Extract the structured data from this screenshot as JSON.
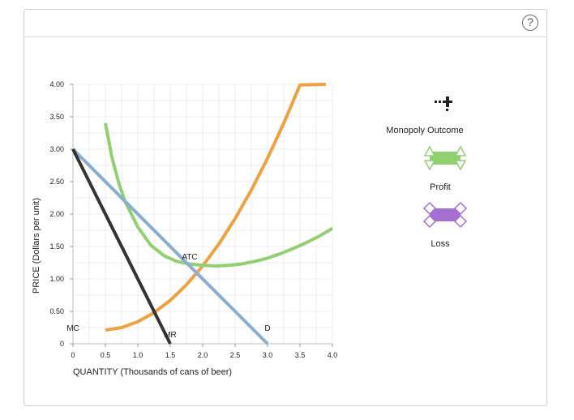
{
  "help_button": {
    "label": "?"
  },
  "chart_data": {
    "type": "line",
    "title": "",
    "xlabel": "QUANTITY (Thousands of cans of beer)",
    "ylabel": "PRICE (Dollars per unit)",
    "xlim": [
      0,
      4.0
    ],
    "ylim": [
      0,
      4.0
    ],
    "x_ticks": [
      "0",
      "0.5",
      "1.0",
      "1.5",
      "2.0",
      "2.5",
      "3.0",
      "3.5",
      "4.0"
    ],
    "y_ticks": [
      "0",
      "0.50",
      "1.00",
      "1.50",
      "2.00",
      "2.50",
      "3.00",
      "3.50",
      "4.00"
    ],
    "grid": true,
    "series": [
      {
        "name": "MC",
        "color": "#f0a040",
        "label_at": [
          0.0,
          0.2
        ],
        "points": [
          [
            0.5,
            0.21
          ],
          [
            0.75,
            0.25
          ],
          [
            1.0,
            0.34
          ],
          [
            1.25,
            0.48
          ],
          [
            1.5,
            0.67
          ],
          [
            1.75,
            0.91
          ],
          [
            2.0,
            1.2
          ],
          [
            2.25,
            1.54
          ],
          [
            2.5,
            1.93
          ],
          [
            2.75,
            2.37
          ],
          [
            3.0,
            2.86
          ],
          [
            3.25,
            3.4
          ],
          [
            3.5,
            3.99
          ],
          [
            3.9,
            4.0
          ]
        ]
      },
      {
        "name": "ATC",
        "color": "#90d070",
        "label_at": [
          1.8,
          1.3
        ],
        "points": [
          [
            0.5,
            3.4
          ],
          [
            0.6,
            2.88
          ],
          [
            0.7,
            2.5
          ],
          [
            0.8,
            2.2
          ],
          [
            1.0,
            1.8
          ],
          [
            1.2,
            1.52
          ],
          [
            1.4,
            1.36
          ],
          [
            1.6,
            1.27
          ],
          [
            1.8,
            1.23
          ],
          [
            2.0,
            1.21
          ],
          [
            2.2,
            1.2
          ],
          [
            2.4,
            1.21
          ],
          [
            2.6,
            1.23
          ],
          [
            2.8,
            1.27
          ],
          [
            3.0,
            1.32
          ],
          [
            3.2,
            1.39
          ],
          [
            3.4,
            1.47
          ],
          [
            3.6,
            1.56
          ],
          [
            3.8,
            1.66
          ],
          [
            4.0,
            1.78
          ]
        ]
      },
      {
        "name": "D",
        "color": "#8aaed0",
        "label_at": [
          3.0,
          0.2
        ],
        "points": [
          [
            0.0,
            3.0
          ],
          [
            3.0,
            0.0
          ]
        ]
      },
      {
        "name": "MR",
        "color": "#333333",
        "label_at": [
          1.5,
          0.1
        ],
        "points": [
          [
            0.0,
            3.0
          ],
          [
            1.5,
            0.0
          ]
        ]
      }
    ]
  },
  "palette": {
    "items": [
      {
        "name": "monopoly-outcome",
        "label": "Monopoly Outcome",
        "color": "#222222"
      },
      {
        "name": "profit",
        "label": "Profit",
        "color": "#90d070"
      },
      {
        "name": "loss",
        "label": "Loss",
        "color": "#a36fd0"
      }
    ]
  }
}
